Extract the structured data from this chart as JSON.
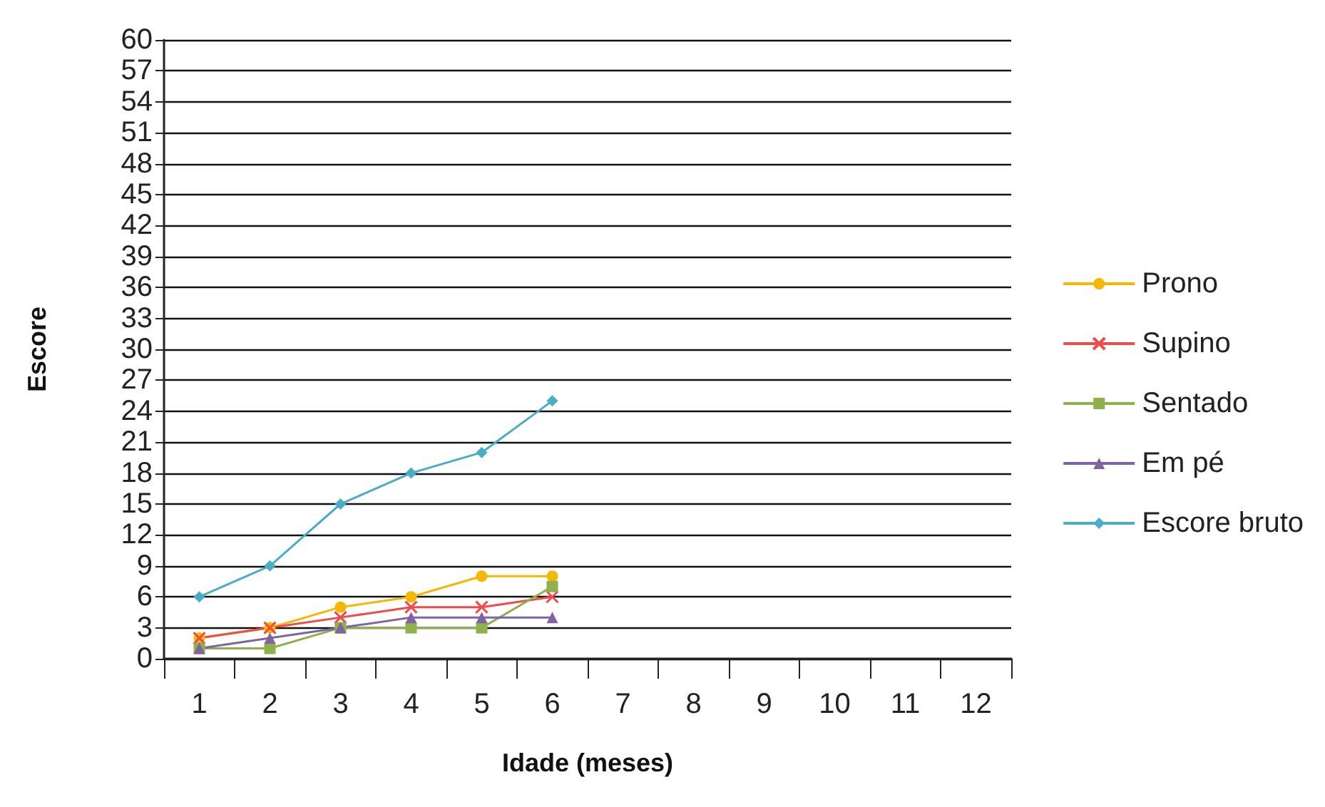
{
  "chart_data": {
    "type": "line",
    "xlabel": "Idade (meses)",
    "ylabel": "Escore",
    "categories": [
      "1",
      "2",
      "3",
      "4",
      "5",
      "6",
      "7",
      "8",
      "9",
      "10",
      "11",
      "12"
    ],
    "series": [
      {
        "name": "Prono",
        "color": "#f5b800",
        "marker": "circle",
        "values": [
          2,
          3,
          5,
          6,
          8,
          8,
          null,
          null,
          null,
          null,
          null,
          null
        ]
      },
      {
        "name": "Supino",
        "color": "#f04a4a",
        "marker": "cross",
        "values": [
          2,
          3,
          4,
          5,
          5,
          6,
          null,
          null,
          null,
          null,
          null,
          null
        ]
      },
      {
        "name": "Sentado",
        "color": "#8fb04a",
        "marker": "square",
        "values": [
          1,
          1,
          3,
          3,
          3,
          7,
          null,
          null,
          null,
          null,
          null,
          null
        ]
      },
      {
        "name": "Em pé",
        "color": "#8064a2",
        "marker": "triangle",
        "values": [
          1,
          2,
          3,
          4,
          4,
          4,
          null,
          null,
          null,
          null,
          null,
          null
        ]
      },
      {
        "name": "Escore bruto",
        "color": "#4bacc6",
        "marker": "diamond",
        "values": [
          6,
          9,
          15,
          18,
          20,
          25,
          null,
          null,
          null,
          null,
          null,
          null
        ]
      }
    ],
    "ylim": [
      0,
      60
    ],
    "yticks": [
      0,
      3,
      6,
      9,
      12,
      15,
      18,
      21,
      24,
      27,
      30,
      33,
      36,
      39,
      42,
      45,
      48,
      51,
      54,
      57,
      60
    ],
    "grid": "y",
    "legend": "right"
  }
}
